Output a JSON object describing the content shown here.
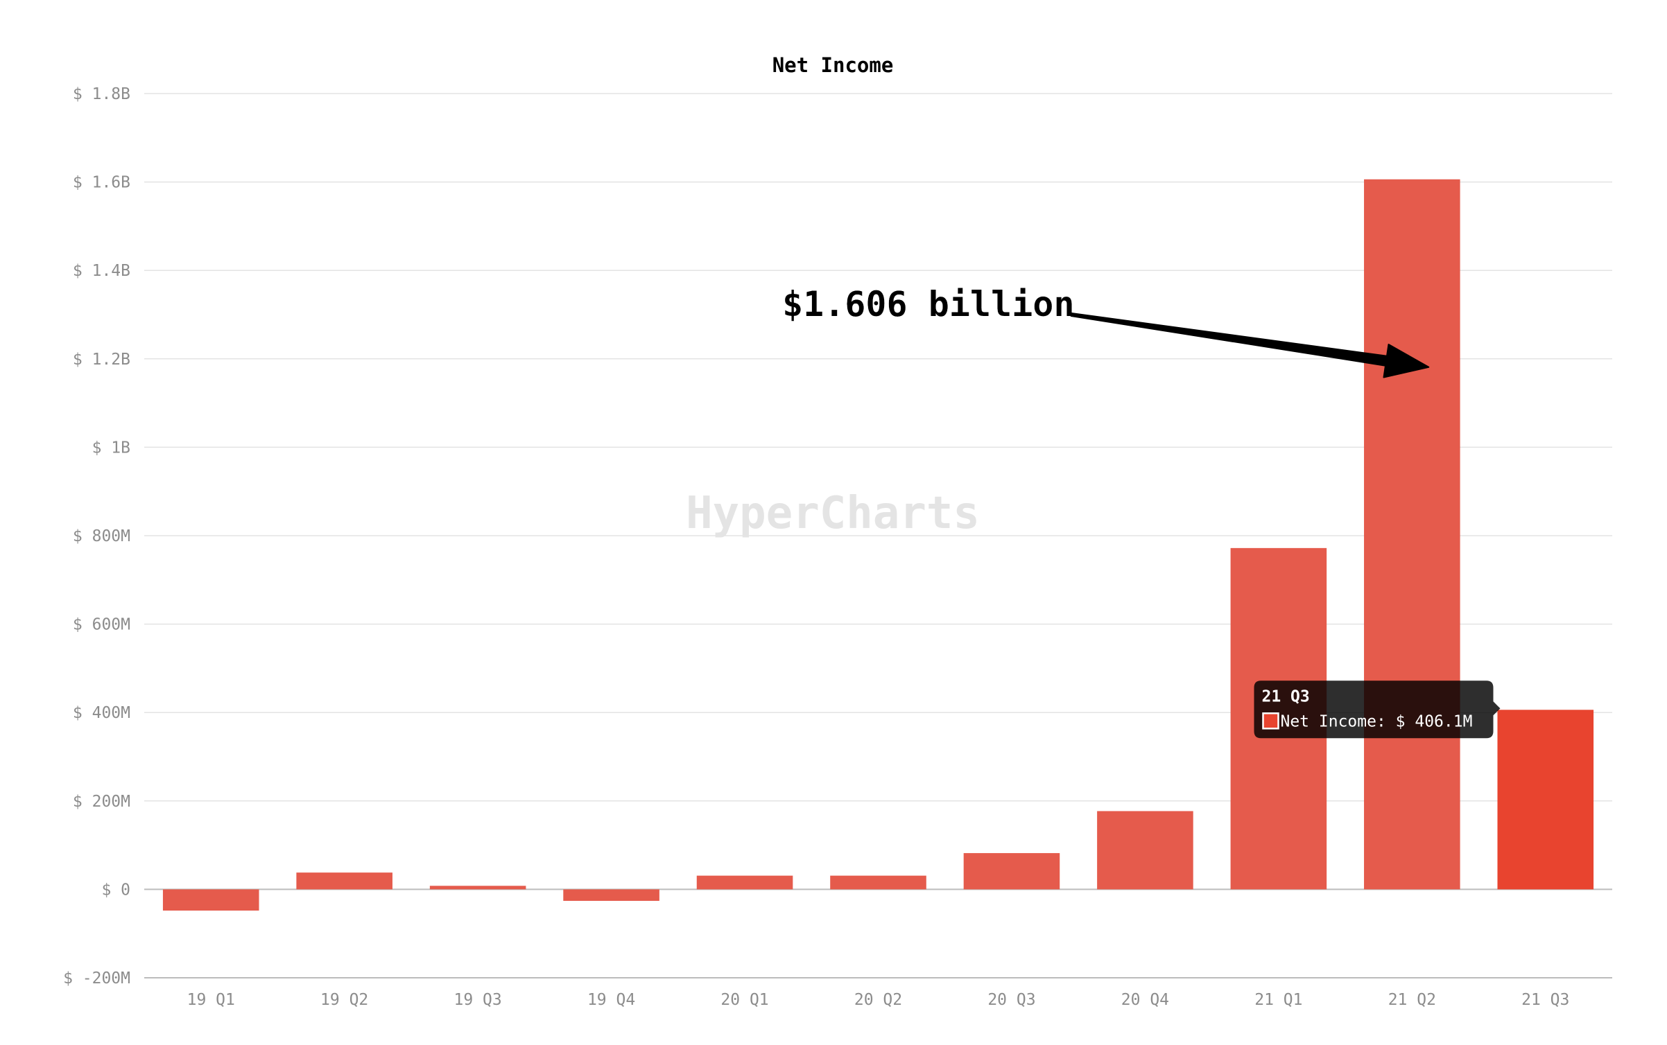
{
  "chart_data": {
    "type": "bar",
    "title": "Net Income",
    "xlabel": "",
    "ylabel": "",
    "categories": [
      "19 Q1",
      "19 Q2",
      "19 Q3",
      "19 Q4",
      "20 Q1",
      "20 Q2",
      "20 Q3",
      "20 Q4",
      "21 Q1",
      "21 Q2",
      "21 Q3"
    ],
    "series": [
      {
        "values": [
          -48000000,
          38000000,
          8000000,
          -26000000,
          31000000,
          31000000,
          82000000,
          177000000,
          772000000,
          1606000000,
          406100000
        ],
        "color": "#e55b4c",
        "highlight_color": "#e8442f"
      }
    ],
    "ylim": [
      -200000000,
      1800000000
    ],
    "yticks": [
      -200000000,
      0,
      200000000,
      400000000,
      600000000,
      800000000,
      1000000000,
      1200000000,
      1400000000,
      1600000000,
      1800000000
    ],
    "ytick_labels": [
      "$ -200M",
      "$ 0",
      "$ 200M",
      "$ 400M",
      "$ 600M",
      "$ 800M",
      "$ 1B",
      "$ 1.2B",
      "$ 1.4B",
      "$ 1.6B",
      "$ 1.8B"
    ],
    "grid": true,
    "legend": "none",
    "highlighted_index": 10,
    "annotation": {
      "text": "$1.606 billion",
      "target_index": 9
    },
    "tooltip": {
      "title": "21 Q3",
      "label": "Net Income: $ 406.1M",
      "swatch_color": "#e8442f"
    },
    "watermark": "HyperCharts"
  }
}
